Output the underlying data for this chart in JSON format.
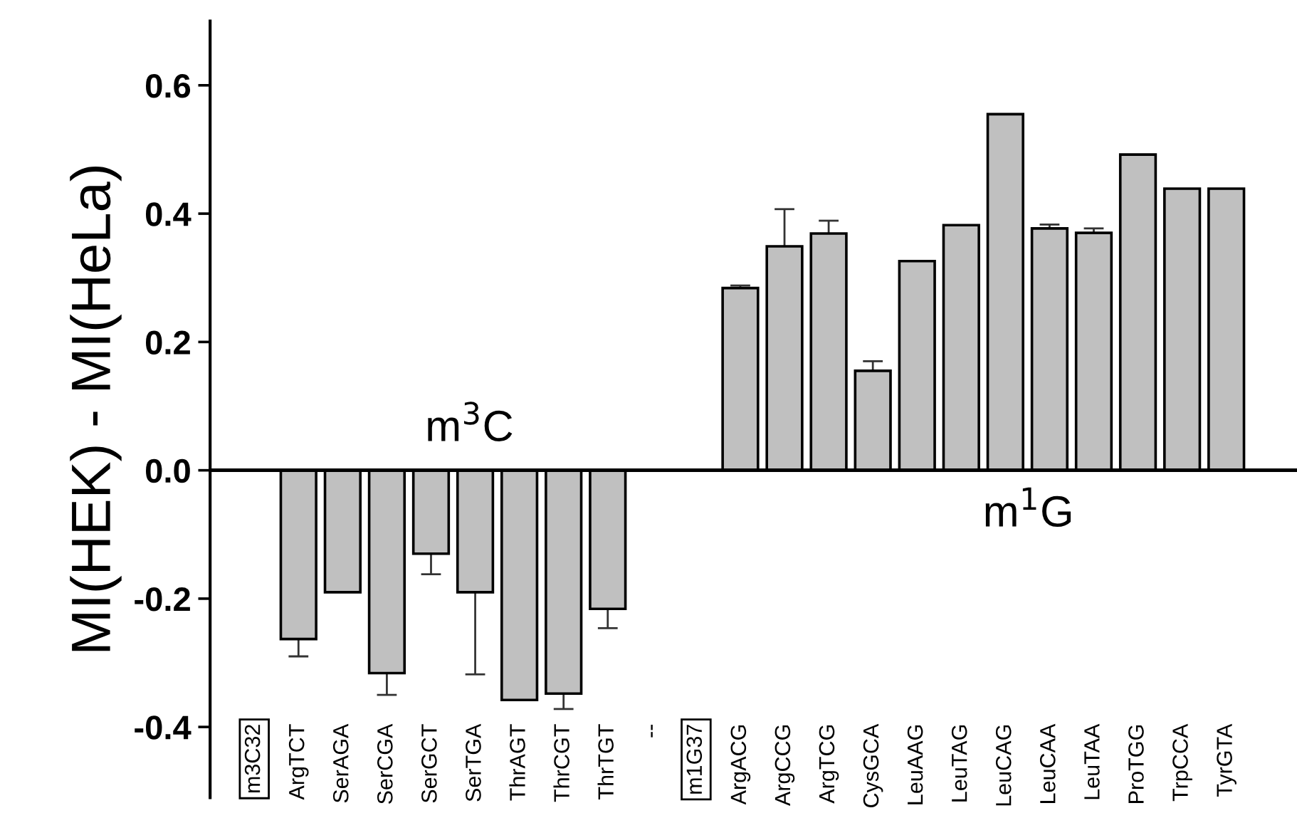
{
  "chart_data": {
    "type": "bar",
    "ylabel": "MI(HEK) - MI(HeLa)",
    "categories": [
      "m3C32",
      "ArgTCT",
      "SerAGA",
      "SerCGA",
      "SerGCT",
      "SerTGA",
      "ThrAGT",
      "ThrCGT",
      "ThrTGT",
      "--",
      "m1G37",
      "ArgACG",
      "ArgCCG",
      "ArgTCG",
      "CysGCA",
      "LeuAAG",
      "LeuTAG",
      "LeuCAG",
      "LeuCAA",
      "LeuTAA",
      "ProTGG",
      "TrpCCA",
      "TyrGTA"
    ],
    "values": [
      null,
      -0.263,
      -0.19,
      -0.316,
      -0.13,
      -0.19,
      -0.358,
      -0.348,
      -0.216,
      null,
      null,
      0.284,
      0.349,
      0.369,
      0.155,
      0.326,
      0.382,
      0.555,
      0.377,
      0.37,
      0.492,
      0.439,
      0.439
    ],
    "errors": [
      null,
      0.027,
      null,
      0.034,
      0.032,
      0.128,
      null,
      0.024,
      0.03,
      null,
      null,
      0.004,
      0.058,
      0.02,
      0.015,
      null,
      null,
      null,
      0.006,
      0.007,
      null,
      null,
      null
    ],
    "color": "#c0c0c0",
    "ylim": [
      -0.51,
      0.7
    ],
    "yticks": [
      -0.4,
      -0.2,
      {
        "value": 0,
        "label": "0.0"
      },
      0.2,
      0.4,
      0.6
    ],
    "annotations": [
      "m$^{3}$C",
      "m$^{1}$G"
    ]
  }
}
